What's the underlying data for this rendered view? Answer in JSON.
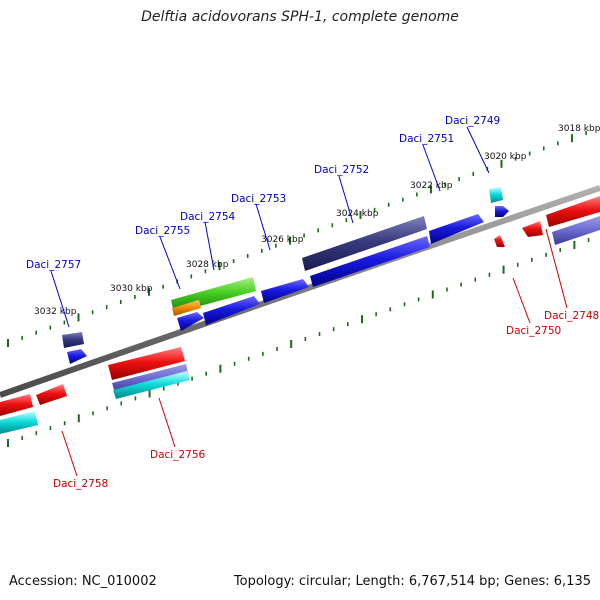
{
  "title": "Delftia acidovorans SPH-1, complete genome",
  "footer": {
    "accession": "Accession: NC_010002",
    "topology": "Topology: circular; Length: 6,767,514 bp; Genes: 6,135"
  },
  "colors": {
    "backbone": "#808080",
    "tick": "#1a6b1a",
    "ruler_label": "#111111",
    "label_forward": "#0000cc",
    "label_reverse": "#cc0000"
  },
  "ruler_labels": [
    "3018 kbp",
    "3020 kbp",
    "3022 kbp",
    "3024 kbp",
    "3026 kbp",
    "3028 kbp",
    "3030 kbp",
    "3032 kbp"
  ],
  "genes_forward": [
    {
      "name": "Daci_2749",
      "color": "#2222dd"
    },
    {
      "name": "Daci_2751",
      "color": "#00cccc"
    },
    {
      "name": "Daci_2752",
      "color": "#1a1acc"
    },
    {
      "name": "Daci_2753",
      "color": "#2a2a7a"
    },
    {
      "name": "Daci_2754",
      "color": "#44cc22"
    },
    {
      "name": "Daci_2755",
      "color": "#ee8800"
    },
    {
      "name": "Daci_2757",
      "color": "#2a2a7a"
    }
  ],
  "genes_reverse": [
    {
      "name": "Daci_2748",
      "color": "#ee1111"
    },
    {
      "name": "Daci_2750",
      "color": "#ee1111"
    },
    {
      "name": "Daci_2756",
      "color": "#ee1111"
    },
    {
      "name": "Daci_2758",
      "color": "#ee1111"
    }
  ]
}
